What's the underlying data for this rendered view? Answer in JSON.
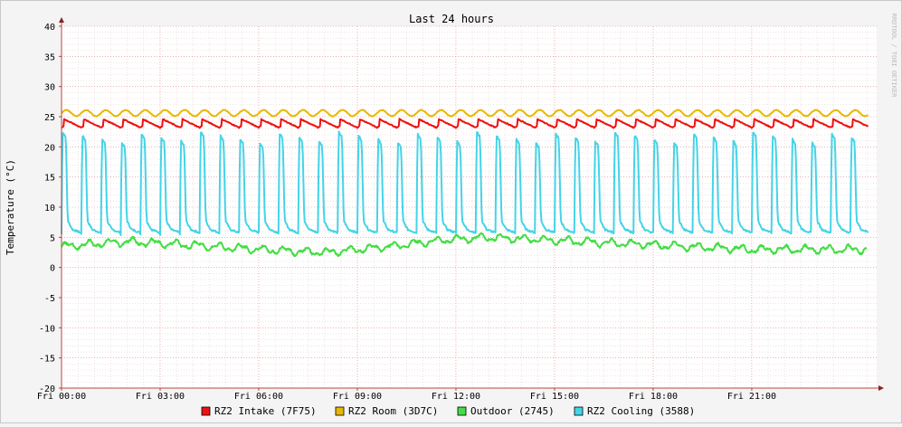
{
  "chart_data": {
    "type": "line",
    "title": "Last 24 hours",
    "ylabel": "Temperature (°C)",
    "watermark": "RRDTOOL / TOBI OETIKER",
    "ylim": [
      -20,
      40
    ],
    "y_ticks": [
      40,
      35,
      30,
      25,
      20,
      15,
      10,
      5,
      0,
      -5,
      -10,
      -15,
      -20
    ],
    "x_range_hours": [
      0,
      24.8
    ],
    "x_ticks": [
      {
        "hour": 0,
        "label": "Fri 00:00"
      },
      {
        "hour": 3,
        "label": "Fri 03:00"
      },
      {
        "hour": 6,
        "label": "Fri 06:00"
      },
      {
        "hour": 9,
        "label": "Fri 09:00"
      },
      {
        "hour": 12,
        "label": "Fri 12:00"
      },
      {
        "hour": 15,
        "label": "Fri 15:00"
      },
      {
        "hour": 18,
        "label": "Fri 18:00"
      },
      {
        "hour": 21,
        "label": "Fri 21:00"
      }
    ],
    "grid": true,
    "legend": "bottom",
    "series": [
      {
        "name": "RZ2 Intake (7F75)",
        "color": "#ee1111",
        "pattern": "sawtooth",
        "min": 23.2,
        "max": 24.6,
        "period_hours": 0.6
      },
      {
        "name": "RZ2 Room (3D7C)",
        "color": "#e8b800",
        "pattern": "wave",
        "min": 25.1,
        "max": 26.1,
        "period_hours": 0.6
      },
      {
        "name": "Outdoor (2745)",
        "color": "#44dd44",
        "pattern": "noisy",
        "points": [
          [
            0,
            3.5
          ],
          [
            2,
            4.3
          ],
          [
            4,
            3.7
          ],
          [
            6,
            3.0
          ],
          [
            8,
            2.5
          ],
          [
            10,
            3.5
          ],
          [
            11.5,
            4.5
          ],
          [
            13,
            5.0
          ],
          [
            15,
            4.5
          ],
          [
            17,
            4.0
          ],
          [
            19,
            3.5
          ],
          [
            21,
            3.0
          ],
          [
            24.5,
            3.0
          ]
        ]
      },
      {
        "name": "RZ2 Cooling (3588)",
        "color": "#44d4e8",
        "pattern": "spikes",
        "min": 5.5,
        "max": 22.5,
        "period_hours": 0.6
      }
    ]
  }
}
